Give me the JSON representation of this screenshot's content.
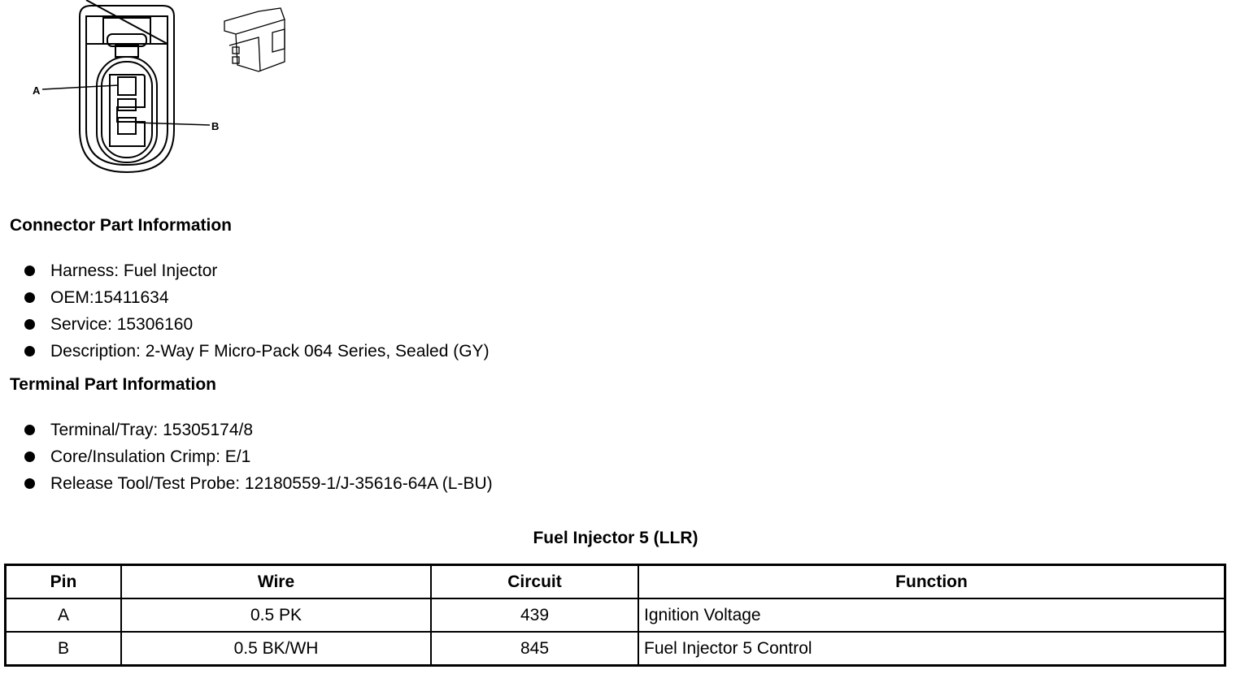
{
  "figure": {
    "pin_labels": [
      "A",
      "B"
    ]
  },
  "connector_info": {
    "heading": "Connector Part Information",
    "items": [
      "Harness: Fuel Injector",
      "OEM:15411634",
      "Service: 15306160",
      "Description: 2-Way F Micro-Pack 064 Series, Sealed (GY)"
    ]
  },
  "terminal_info": {
    "heading": "Terminal Part Information",
    "items": [
      "Terminal/Tray: 15305174/8",
      "Core/Insulation Crimp: E/1",
      "Release Tool/Test Probe: 12180559-1/J-35616-64A (L-BU)"
    ]
  },
  "table": {
    "title": "Fuel Injector 5 (LLR)",
    "headers": [
      "Pin",
      "Wire",
      "Circuit",
      "Function"
    ],
    "rows": [
      [
        "A",
        "0.5 PK",
        "439",
        "Ignition Voltage"
      ],
      [
        "B",
        "0.5 BK/WH",
        "845",
        "Fuel Injector 5 Control"
      ]
    ]
  }
}
